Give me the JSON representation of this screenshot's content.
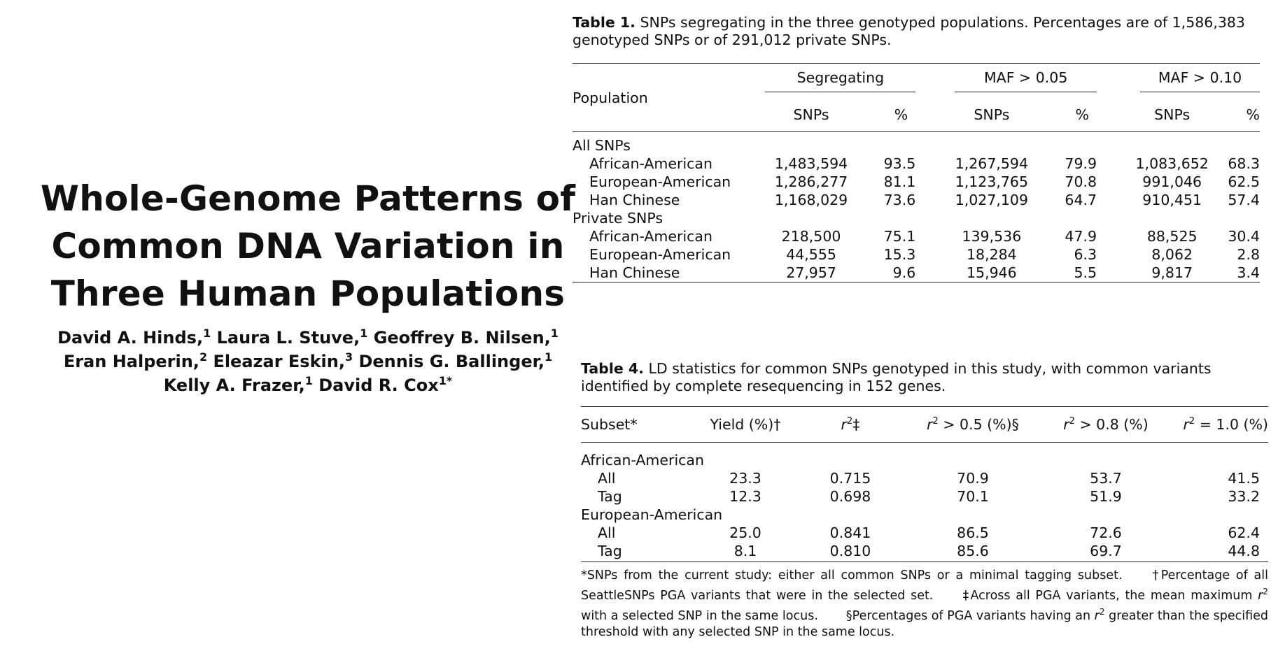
{
  "title": {
    "lines": [
      "Whole-Genome Patterns of",
      "Common DNA Variation in",
      "Three Human Populations"
    ]
  },
  "authors": [
    {
      "name": "David A. Hinds,",
      "sup": "1"
    },
    {
      "name": "Laura L. Stuve,",
      "sup": "1"
    },
    {
      "name": "Geoffrey B. Nilsen,",
      "sup": "1"
    },
    {
      "name": "Eran Halperin,",
      "sup": "2"
    },
    {
      "name": "Eleazar Eskin,",
      "sup": "3"
    },
    {
      "name": "Dennis G. Ballinger,",
      "sup": "1"
    },
    {
      "name": "Kelly A. Frazer,",
      "sup": "1"
    },
    {
      "name": "David R. Cox",
      "sup": "1*"
    }
  ],
  "table1": {
    "label": "Table 1.",
    "caption": "SNPs segregating in the three genotyped populations. Percentages are of 1,586,383 genotyped SNPs or of 291,012 private SNPs.",
    "col_population": "Population",
    "groups": [
      "Segregating",
      "MAF > 0.05",
      "MAF > 0.10"
    ],
    "subcols": [
      "SNPs",
      "%",
      "SNPs",
      "%",
      "SNPs",
      "%"
    ],
    "sections": [
      {
        "label": "All SNPs",
        "rows": [
          {
            "name": "African-American",
            "cells": [
              "1,483,594",
              "93.5",
              "1,267,594",
              "79.9",
              "1,083,652",
              "68.3"
            ]
          },
          {
            "name": "European-American",
            "cells": [
              "1,286,277",
              "81.1",
              "1,123,765",
              "70.8",
              "991,046",
              "62.5"
            ]
          },
          {
            "name": "Han Chinese",
            "cells": [
              "1,168,029",
              "73.6",
              "1,027,109",
              "64.7",
              "910,451",
              "57.4"
            ]
          }
        ]
      },
      {
        "label": "Private SNPs",
        "rows": [
          {
            "name": "African-American",
            "cells": [
              "218,500",
              "75.1",
              "139,536",
              "47.9",
              "88,525",
              "30.4"
            ]
          },
          {
            "name": "European-American",
            "cells": [
              "44,555",
              "15.3",
              "18,284",
              "6.3",
              "8,062",
              "2.8"
            ]
          },
          {
            "name": "Han Chinese",
            "cells": [
              "27,957",
              "9.6",
              "15,946",
              "5.5",
              "9,817",
              "3.4"
            ]
          }
        ]
      }
    ]
  },
  "table4": {
    "label": "Table 4.",
    "caption": "LD statistics for common SNPs genotyped in this study, with common variants identified by complete resequencing in 152 genes.",
    "headers": {
      "subset": "Subset*",
      "yield": "Yield (%)†",
      "r2": "‡",
      "r2_05": "> 0.5 (%)§",
      "r2_08": "> 0.8 (%)",
      "r2_10": "= 1.0 (%)"
    },
    "sections": [
      {
        "label": "African-American",
        "rows": [
          {
            "name": "All",
            "cells": [
              "23.3",
              "0.715",
              "70.9",
              "53.7",
              "41.5"
            ]
          },
          {
            "name": "Tag",
            "cells": [
              "12.3",
              "0.698",
              "70.1",
              "51.9",
              "33.2"
            ]
          }
        ]
      },
      {
        "label": "European-American",
        "rows": [
          {
            "name": "All",
            "cells": [
              "25.0",
              "0.841",
              "86.5",
              "72.6",
              "62.4"
            ]
          },
          {
            "name": "Tag",
            "cells": [
              "8.1",
              "0.810",
              "85.6",
              "69.7",
              "44.8"
            ]
          }
        ]
      }
    ],
    "footnotes": {
      "star": "*SNPs from the current study: either all common SNPs or a minimal tagging subset.",
      "dagger": "†Percentage of all SeattleSNPs PGA variants that were in the selected set.",
      "ddagger_a": "‡Across all PGA variants, the mean maximum",
      "ddagger_b": "with a selected SNP in the same locus.",
      "section_a": "§Percentages of PGA variants having an",
      "section_b": "greater than the specified threshold with any selected SNP in the same locus."
    }
  }
}
